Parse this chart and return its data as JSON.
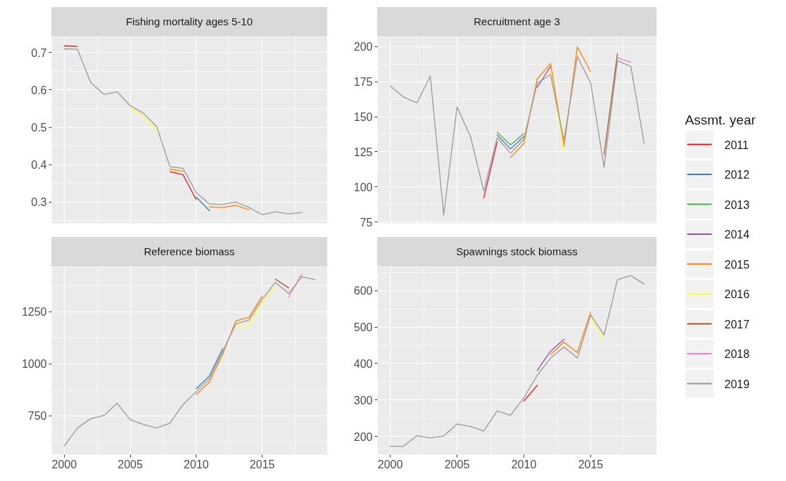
{
  "chart_data": [
    {
      "type": "line",
      "title": "Fishing mortality ages 5-10",
      "xlim": [
        1999.05,
        2019.95
      ],
      "xticks": [
        2000,
        2005,
        2010,
        2015
      ],
      "ylim": [
        0.243,
        0.742
      ],
      "yticks": [
        0.3,
        0.4,
        0.5,
        0.6,
        0.7
      ],
      "grid": true,
      "tick_labels": "y",
      "line_style": "solid",
      "series": [
        {
          "color": "#e41a1c",
          "x": [
            2000,
            2001,
            2002,
            2003,
            2004,
            2005,
            2006,
            2007,
            2008,
            2009,
            2010
          ],
          "values": [
            0.718,
            0.717,
            null,
            null,
            null,
            null,
            null,
            null,
            0.381,
            0.373,
            0.306
          ]
        },
        {
          "color": "#377eb8",
          "x": [
            2010,
            2011
          ],
          "values": [
            0.313,
            0.277
          ]
        },
        {
          "color": "#ff7f00",
          "x": [
            2008,
            2009,
            2010,
            2011,
            2012,
            2013,
            2014
          ],
          "values": [
            0.388,
            0.382,
            null,
            0.287,
            0.285,
            0.291,
            0.279
          ]
        },
        {
          "color": "#ffff33",
          "x": [
            2005,
            2006,
            2007
          ],
          "values": [
            0.551,
            0.53,
            0.492
          ]
        },
        {
          "color": "#999999",
          "x": [
            2000,
            2001,
            2002,
            2003,
            2004,
            2005,
            2006,
            2007,
            2008,
            2009,
            2010,
            2011,
            2012,
            2013,
            2014,
            2015,
            2016,
            2017,
            2018
          ],
          "values": [
            0.71,
            0.709,
            0.62,
            0.588,
            0.595,
            0.558,
            0.538,
            0.502,
            0.395,
            0.39,
            0.325,
            0.295,
            0.293,
            0.3,
            0.285,
            0.266,
            0.274,
            0.268,
            0.272
          ]
        }
      ]
    },
    {
      "type": "line",
      "title": "Recruitment age 3",
      "xlim": [
        1999.05,
        2019.95
      ],
      "xticks": [
        2000,
        2005,
        2010,
        2015
      ],
      "ylim": [
        74,
        207
      ],
      "yticks": [
        75,
        100,
        125,
        150,
        175,
        200
      ],
      "grid": true,
      "tick_labels": "y",
      "line_style": "solid",
      "legend": "right",
      "legend_title": "Assmt. year",
      "series": [
        {
          "name": "2011",
          "color": "#e41a1c",
          "x": [
            2007,
            2008
          ],
          "values": [
            92,
            132
          ]
        },
        {
          "name": "2012",
          "color": "#377eb8",
          "x": [
            2008,
            2009,
            2010
          ],
          "values": [
            137,
            127,
            136
          ]
        },
        {
          "name": "2013",
          "color": "#4daf4a",
          "x": [
            2008,
            2009,
            2010
          ],
          "values": [
            139,
            130,
            138
          ]
        },
        {
          "name": "2014",
          "color": "#984ea3",
          "x": [
            2011,
            2012
          ],
          "values": [
            171,
            186
          ]
        },
        {
          "name": "2015",
          "color": "#ff7f00",
          "x": [
            2009,
            2010,
            2011,
            2012,
            2013,
            2014,
            2015
          ],
          "values": [
            121,
            131,
            177,
            188,
            129,
            200,
            182
          ]
        },
        {
          "name": "2016",
          "color": "#ffff33",
          "x": [
            2012,
            2013
          ],
          "values": [
            183,
            126
          ]
        },
        {
          "name": "2017",
          "color": "#a65628",
          "x": [
            2016,
            2017
          ],
          "values": [
            123,
            195
          ]
        },
        {
          "name": "2018",
          "color": "#f781bf",
          "x": [
            2017,
            2018
          ],
          "values": [
            192,
            189
          ]
        },
        {
          "name": "2019",
          "color": "#999999",
          "x": [
            2000,
            2001,
            2002,
            2003,
            2004,
            2005,
            2006,
            2007,
            2008,
            2009,
            2010,
            2011,
            2012,
            2013,
            2014,
            2015,
            2016,
            2017,
            2018,
            2019
          ],
          "values": [
            172,
            164,
            160,
            179,
            80,
            157,
            136,
            97,
            135,
            124,
            134,
            174,
            180,
            133,
            193,
            174,
            114,
            190,
            186,
            131
          ]
        }
      ]
    },
    {
      "type": "line",
      "title": "Reference biomass",
      "xlim": [
        1999.05,
        2019.95
      ],
      "xticks": [
        2000,
        2005,
        2010,
        2015
      ],
      "ylim": [
        563,
        1466
      ],
      "yticks": [
        750,
        1000,
        1250
      ],
      "grid": true,
      "line_style": "solid",
      "series": [
        {
          "color": "#377eb8",
          "x": [
            2010,
            2011,
            2012
          ],
          "values": [
            880,
            942,
            1073
          ]
        },
        {
          "color": "#ff7f00",
          "x": [
            2010,
            2011,
            2012,
            2013,
            2014,
            2015
          ],
          "values": [
            852,
            912,
            1045,
            1206,
            1224,
            1325
          ]
        },
        {
          "color": "#ffff33",
          "x": [
            2013,
            2014,
            2015,
            2016
          ],
          "values": [
            1178,
            1188,
            1290,
            1375
          ]
        },
        {
          "color": "#a65628",
          "x": [
            2016,
            2017
          ],
          "values": [
            1407,
            1365
          ]
        },
        {
          "color": "#f781bf",
          "x": [
            2017,
            2018
          ],
          "values": [
            1322,
            1432
          ]
        },
        {
          "color": "#999999",
          "x": [
            2000,
            2001,
            2002,
            2003,
            2004,
            2005,
            2006,
            2007,
            2008,
            2009,
            2010,
            2011,
            2012,
            2013,
            2014,
            2015,
            2016,
            2017,
            2018,
            2019
          ],
          "values": [
            604,
            691,
            736,
            751,
            810,
            731,
            708,
            691,
            714,
            804,
            866,
            928,
            1058,
            1192,
            1210,
            1310,
            1392,
            1338,
            1418,
            1405
          ]
        }
      ]
    },
    {
      "type": "line",
      "title": "Spawnings stock biomass",
      "xlim": [
        1999.05,
        2019.95
      ],
      "xticks": [
        2000,
        2005,
        2010,
        2015
      ],
      "ylim": [
        150,
        665
      ],
      "yticks": [
        200,
        300,
        400,
        500,
        600
      ],
      "grid": true,
      "line_style": "solid",
      "series": [
        {
          "color": "#e41a1c",
          "x": [
            2010,
            2011
          ],
          "values": [
            297,
            340
          ]
        },
        {
          "color": "#984ea3",
          "x": [
            2011,
            2012,
            2013
          ],
          "values": [
            381,
            434,
            466
          ]
        },
        {
          "color": "#ff7f00",
          "x": [
            2012,
            2013,
            2014,
            2015
          ],
          "values": [
            425,
            458,
            430,
            541
          ]
        },
        {
          "color": "#ffff33",
          "x": [
            2015,
            2016
          ],
          "values": [
            525,
            465
          ]
        },
        {
          "color": "#999999",
          "x": [
            2000,
            2001,
            2002,
            2003,
            2004,
            2005,
            2006,
            2007,
            2008,
            2009,
            2010,
            2011,
            2012,
            2013,
            2014,
            2015,
            2016,
            2017,
            2018,
            2019
          ],
          "values": [
            173,
            173,
            202,
            196,
            201,
            234,
            227,
            215,
            270,
            258,
            306,
            368,
            415,
            445,
            415,
            533,
            478,
            630,
            641,
            618
          ]
        }
      ]
    }
  ]
}
